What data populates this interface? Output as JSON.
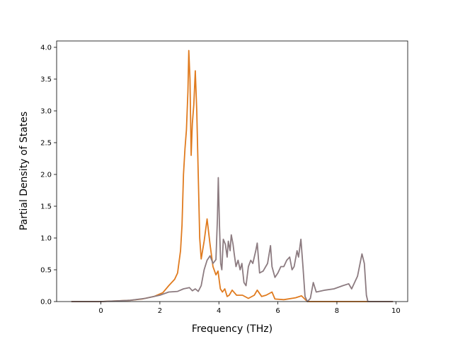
{
  "chart_data": {
    "type": "line",
    "title": "",
    "xlabel": "Frequency (THz)",
    "ylabel": "Partial Density of States",
    "xlim": [
      -1.5,
      10.4
    ],
    "ylim": [
      0.0,
      4.1
    ],
    "xticks": [
      0,
      2,
      4,
      6,
      8,
      10
    ],
    "yticks": [
      0.0,
      0.5,
      1.0,
      1.5,
      2.0,
      2.5,
      3.0,
      3.5,
      4.0
    ],
    "xtick_labels": [
      "0",
      "2",
      "4",
      "6",
      "8",
      "10"
    ],
    "ytick_labels": [
      "0.0",
      "0.5",
      "1.0",
      "1.5",
      "2.0",
      "2.5",
      "3.0",
      "3.5",
      "4.0"
    ],
    "grid": false,
    "legend": "none",
    "series": [
      {
        "color": "#e07b1f",
        "points": [
          [
            -1.0,
            0.0
          ],
          [
            0.0,
            0.0
          ],
          [
            0.5,
            0.01
          ],
          [
            1.0,
            0.02
          ],
          [
            1.4,
            0.04
          ],
          [
            1.8,
            0.08
          ],
          [
            2.1,
            0.14
          ],
          [
            2.3,
            0.25
          ],
          [
            2.5,
            0.35
          ],
          [
            2.6,
            0.45
          ],
          [
            2.7,
            0.8
          ],
          [
            2.75,
            1.2
          ],
          [
            2.8,
            2.0
          ],
          [
            2.85,
            2.4
          ],
          [
            2.9,
            2.7
          ],
          [
            2.95,
            3.3
          ],
          [
            2.98,
            3.95
          ],
          [
            3.02,
            3.5
          ],
          [
            3.06,
            2.3
          ],
          [
            3.1,
            2.8
          ],
          [
            3.15,
            3.1
          ],
          [
            3.2,
            3.63
          ],
          [
            3.25,
            3.0
          ],
          [
            3.3,
            2.0
          ],
          [
            3.35,
            1.0
          ],
          [
            3.4,
            0.67
          ],
          [
            3.5,
            0.95
          ],
          [
            3.6,
            1.3
          ],
          [
            3.7,
            0.9
          ],
          [
            3.8,
            0.55
          ],
          [
            3.9,
            0.42
          ],
          [
            3.97,
            0.48
          ],
          [
            4.05,
            0.2
          ],
          [
            4.12,
            0.15
          ],
          [
            4.2,
            0.2
          ],
          [
            4.28,
            0.08
          ],
          [
            4.35,
            0.1
          ],
          [
            4.45,
            0.18
          ],
          [
            4.6,
            0.1
          ],
          [
            4.8,
            0.1
          ],
          [
            5.0,
            0.05
          ],
          [
            5.2,
            0.1
          ],
          [
            5.3,
            0.18
          ],
          [
            5.45,
            0.08
          ],
          [
            5.6,
            0.1
          ],
          [
            5.8,
            0.15
          ],
          [
            5.9,
            0.04
          ],
          [
            6.2,
            0.03
          ],
          [
            6.6,
            0.06
          ],
          [
            6.8,
            0.09
          ],
          [
            7.0,
            0.0
          ],
          [
            9.0,
            0.0
          ],
          [
            9.9,
            0.0
          ]
        ]
      },
      {
        "color": "#8c7b80",
        "points": [
          [
            -1.0,
            0.0
          ],
          [
            0.0,
            0.0
          ],
          [
            0.5,
            0.01
          ],
          [
            1.0,
            0.02
          ],
          [
            1.5,
            0.05
          ],
          [
            2.0,
            0.1
          ],
          [
            2.3,
            0.15
          ],
          [
            2.6,
            0.16
          ],
          [
            2.8,
            0.2
          ],
          [
            3.0,
            0.22
          ],
          [
            3.1,
            0.17
          ],
          [
            3.2,
            0.2
          ],
          [
            3.3,
            0.16
          ],
          [
            3.4,
            0.25
          ],
          [
            3.5,
            0.5
          ],
          [
            3.6,
            0.65
          ],
          [
            3.7,
            0.72
          ],
          [
            3.8,
            0.6
          ],
          [
            3.9,
            0.66
          ],
          [
            3.95,
            1.3
          ],
          [
            3.98,
            1.95
          ],
          [
            4.02,
            1.2
          ],
          [
            4.06,
            0.6
          ],
          [
            4.1,
            0.5
          ],
          [
            4.15,
            0.98
          ],
          [
            4.22,
            0.9
          ],
          [
            4.28,
            0.7
          ],
          [
            4.32,
            0.95
          ],
          [
            4.38,
            0.8
          ],
          [
            4.42,
            1.05
          ],
          [
            4.48,
            0.9
          ],
          [
            4.52,
            0.75
          ],
          [
            4.58,
            0.55
          ],
          [
            4.65,
            0.65
          ],
          [
            4.72,
            0.5
          ],
          [
            4.78,
            0.6
          ],
          [
            4.85,
            0.3
          ],
          [
            4.92,
            0.25
          ],
          [
            5.0,
            0.55
          ],
          [
            5.08,
            0.65
          ],
          [
            5.15,
            0.6
          ],
          [
            5.25,
            0.8
          ],
          [
            5.3,
            0.92
          ],
          [
            5.38,
            0.45
          ],
          [
            5.5,
            0.48
          ],
          [
            5.65,
            0.6
          ],
          [
            5.75,
            0.88
          ],
          [
            5.8,
            0.55
          ],
          [
            5.9,
            0.38
          ],
          [
            6.0,
            0.45
          ],
          [
            6.1,
            0.55
          ],
          [
            6.2,
            0.55
          ],
          [
            6.3,
            0.65
          ],
          [
            6.4,
            0.7
          ],
          [
            6.48,
            0.5
          ],
          [
            6.55,
            0.55
          ],
          [
            6.65,
            0.8
          ],
          [
            6.7,
            0.7
          ],
          [
            6.78,
            0.98
          ],
          [
            6.85,
            0.55
          ],
          [
            6.92,
            0.08
          ],
          [
            7.0,
            0.0
          ],
          [
            7.1,
            0.05
          ],
          [
            7.2,
            0.3
          ],
          [
            7.3,
            0.15
          ],
          [
            7.6,
            0.18
          ],
          [
            7.9,
            0.2
          ],
          [
            8.2,
            0.25
          ],
          [
            8.4,
            0.28
          ],
          [
            8.5,
            0.2
          ],
          [
            8.7,
            0.4
          ],
          [
            8.85,
            0.75
          ],
          [
            8.93,
            0.6
          ],
          [
            9.0,
            0.1
          ],
          [
            9.05,
            0.0
          ],
          [
            9.9,
            0.0
          ]
        ]
      }
    ]
  }
}
